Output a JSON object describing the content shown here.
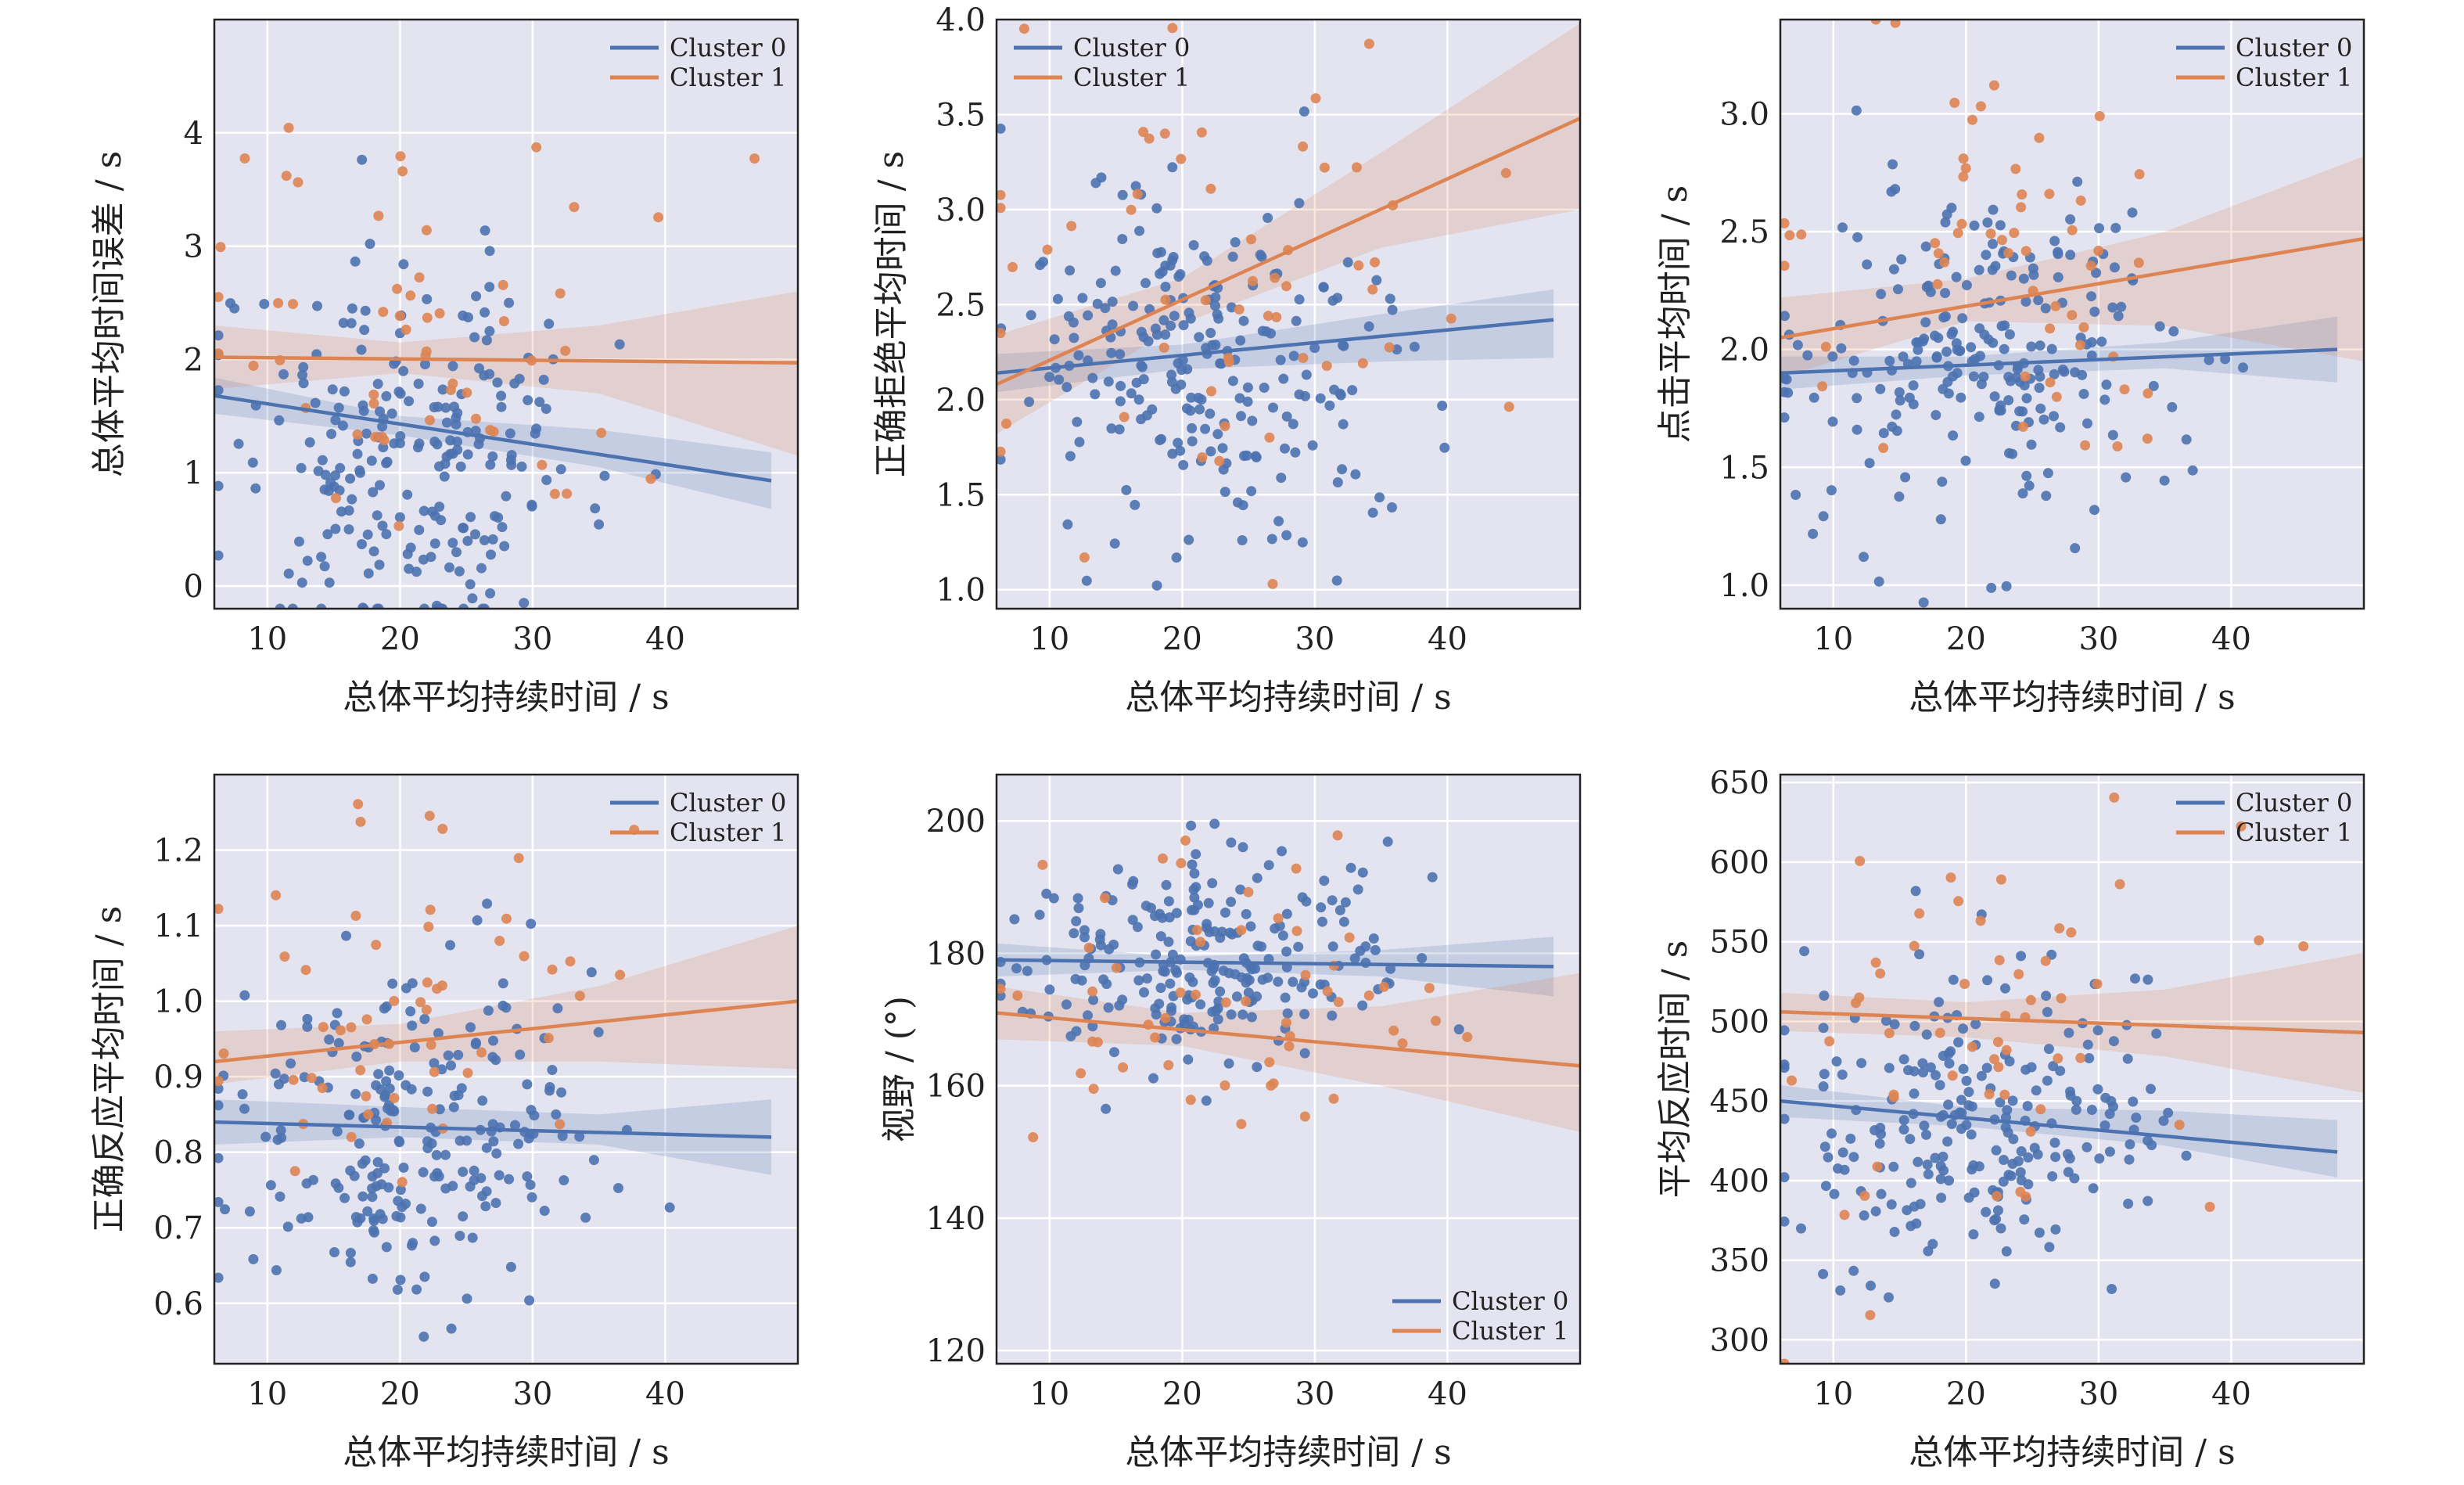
{
  "colors": {
    "panel_bg": "#e4e4f0",
    "grid": "#ffffff",
    "cluster0": "#4c72b0",
    "cluster1": "#dd8452"
  },
  "chart_data": [
    {
      "type": "scatter",
      "panel": 0,
      "xlabel": "总体平均持续时间 / s",
      "ylabel": "总体平均时间误差 / s",
      "xlim": [
        6,
        50
      ],
      "ylim": [
        -0.2,
        5.0
      ],
      "xticks": [
        10,
        20,
        30,
        40
      ],
      "yticks": [
        0,
        1,
        2,
        3,
        4
      ],
      "legend": {
        "position": "top-right",
        "entries": [
          "Cluster 0",
          "Cluster 1"
        ]
      },
      "series": [
        {
          "name": "Cluster 0",
          "fit": {
            "x": [
              6,
              48
            ],
            "y": [
              1.68,
              0.93
            ]
          },
          "band": {
            "x": [
              6,
              20,
              35,
              48
            ],
            "lower": [
              1.52,
              1.33,
              1.05,
              0.68
            ],
            "upper": [
              1.84,
              1.5,
              1.38,
              1.18
            ]
          },
          "n": 230,
          "center": [
            21,
            1.2
          ],
          "spread": [
            7,
            0.85
          ]
        },
        {
          "name": "Cluster 1",
          "fit": {
            "x": [
              6,
              50
            ],
            "y": [
              2.02,
              1.97
            ]
          },
          "band": {
            "x": [
              6,
              20,
              35,
              50
            ],
            "lower": [
              1.74,
              1.88,
              1.7,
              1.15
            ],
            "upper": [
              2.3,
              2.15,
              2.3,
              2.6
            ]
          },
          "n": 55,
          "center": [
            21,
            2.1
          ],
          "spread": [
            9,
            1.0
          ]
        }
      ]
    },
    {
      "type": "scatter",
      "panel": 1,
      "xlabel": "总体平均持续时间 / s",
      "ylabel": "正确拒绝平均时间 / s",
      "xlim": [
        6,
        50
      ],
      "ylim": [
        0.9,
        4.0
      ],
      "xticks": [
        10,
        20,
        30,
        40
      ],
      "yticks": [
        1.0,
        1.5,
        2.0,
        2.5,
        3.0,
        3.5,
        4.0
      ],
      "legend": {
        "position": "top-left",
        "entries": [
          "Cluster 0",
          "Cluster 1"
        ]
      },
      "series": [
        {
          "name": "Cluster 0",
          "fit": {
            "x": [
              6,
              48
            ],
            "y": [
              2.14,
              2.42
            ]
          },
          "band": {
            "x": [
              6,
              20,
              35,
              48
            ],
            "lower": [
              2.04,
              2.16,
              2.2,
              2.22
            ],
            "upper": [
              2.24,
              2.29,
              2.45,
              2.58
            ]
          },
          "n": 230,
          "center": [
            21,
            2.2
          ],
          "spread": [
            7,
            0.45
          ]
        },
        {
          "name": "Cluster 1",
          "fit": {
            "x": [
              6,
              50
            ],
            "y": [
              2.08,
              3.48
            ]
          },
          "band": {
            "x": [
              6,
              20,
              35,
              50
            ],
            "lower": [
              1.82,
              2.4,
              2.8,
              3.0
            ],
            "upper": [
              2.34,
              2.64,
              3.3,
              3.98
            ]
          },
          "n": 55,
          "center": [
            22,
            2.5
          ],
          "spread": [
            9,
            0.65
          ]
        }
      ]
    },
    {
      "type": "scatter",
      "panel": 2,
      "xlabel": "总体平均持续时间 / s",
      "ylabel": "点击平均时间 / s",
      "xlim": [
        6,
        50
      ],
      "ylim": [
        0.9,
        3.4
      ],
      "xticks": [
        10,
        20,
        30,
        40
      ],
      "yticks": [
        1.0,
        1.5,
        2.0,
        2.5,
        3.0
      ],
      "legend": {
        "position": "top-right",
        "entries": [
          "Cluster 0",
          "Cluster 1"
        ]
      },
      "series": [
        {
          "name": "Cluster 0",
          "fit": {
            "x": [
              6,
              48
            ],
            "y": [
              1.9,
              2.0
            ]
          },
          "band": {
            "x": [
              6,
              20,
              35,
              48
            ],
            "lower": [
              1.83,
              1.89,
              1.92,
              1.86
            ],
            "upper": [
              1.97,
              1.97,
              2.03,
              2.14
            ]
          },
          "n": 230,
          "center": [
            21,
            1.95
          ],
          "spread": [
            7,
            0.35
          ]
        },
        {
          "name": "Cluster 1",
          "fit": {
            "x": [
              6,
              50
            ],
            "y": [
              2.05,
              2.47
            ]
          },
          "band": {
            "x": [
              6,
              20,
              35,
              50
            ],
            "lower": [
              1.88,
              2.12,
              2.1,
              1.95
            ],
            "upper": [
              2.22,
              2.3,
              2.5,
              2.82
            ]
          },
          "n": 55,
          "center": [
            22,
            2.3
          ],
          "spread": [
            9,
            0.5
          ]
        }
      ]
    },
    {
      "type": "scatter",
      "panel": 3,
      "xlabel": "总体平均持续时间 / s",
      "ylabel": "正确反应平均时间 / s",
      "xlim": [
        6,
        50
      ],
      "ylim": [
        0.52,
        1.3
      ],
      "xticks": [
        10,
        20,
        30,
        40
      ],
      "yticks": [
        0.6,
        0.7,
        0.8,
        0.9,
        1.0,
        1.1,
        1.2
      ],
      "legend": {
        "position": "top-right",
        "entries": [
          "Cluster 0",
          "Cluster 1"
        ]
      },
      "series": [
        {
          "name": "Cluster 0",
          "fit": {
            "x": [
              6,
              48
            ],
            "y": [
              0.84,
              0.82
            ]
          },
          "band": {
            "x": [
              6,
              20,
              35,
              48
            ],
            "lower": [
              0.81,
              0.82,
              0.81,
              0.77
            ],
            "upper": [
              0.87,
              0.86,
              0.85,
              0.87
            ]
          },
          "n": 230,
          "center": [
            21,
            0.83
          ],
          "spread": [
            7,
            0.11
          ]
        },
        {
          "name": "Cluster 1",
          "fit": {
            "x": [
              6,
              50
            ],
            "y": [
              0.92,
              1.0
            ]
          },
          "band": {
            "x": [
              6,
              20,
              35,
              50
            ],
            "lower": [
              0.89,
              0.92,
              0.92,
              0.91
            ],
            "upper": [
              0.96,
              0.97,
              1.02,
              1.1
            ]
          },
          "n": 55,
          "center": [
            22,
            0.95
          ],
          "spread": [
            9,
            0.13
          ]
        }
      ]
    },
    {
      "type": "scatter",
      "panel": 4,
      "xlabel": "总体平均持续时间 / s",
      "ylabel": "视野 / (°)",
      "xlim": [
        6,
        50
      ],
      "ylim": [
        118,
        207
      ],
      "xticks": [
        10,
        20,
        30,
        40
      ],
      "yticks": [
        120,
        140,
        160,
        180,
        200
      ],
      "legend": {
        "position": "bottom-right",
        "entries": [
          "Cluster 0",
          "Cluster 1"
        ]
      },
      "series": [
        {
          "name": "Cluster 0",
          "fit": {
            "x": [
              6,
              48
            ],
            "y": [
              179,
              178
            ]
          },
          "band": {
            "x": [
              6,
              20,
              35,
              48
            ],
            "lower": [
              176.5,
              177.5,
              176.5,
              173.5
            ],
            "upper": [
              181.5,
              179.5,
              180.5,
              182.5
            ]
          },
          "n": 230,
          "center": [
            21,
            179
          ],
          "spread": [
            7,
            8
          ]
        },
        {
          "name": "Cluster 1",
          "fit": {
            "x": [
              6,
              50
            ],
            "y": [
              171,
              163
            ]
          },
          "band": {
            "x": [
              6,
              20,
              35,
              50
            ],
            "lower": [
              167,
              166,
              160,
              153
            ],
            "upper": [
              175,
              171,
              172,
              177
            ]
          },
          "n": 55,
          "center": [
            22,
            170
          ],
          "spread": [
            9,
            12
          ]
        }
      ]
    },
    {
      "type": "scatter",
      "panel": 5,
      "xlabel": "总体平均持续时间 / s",
      "ylabel": "平均反应时间 / s",
      "xlim": [
        6,
        50
      ],
      "ylim": [
        285,
        655
      ],
      "xticks": [
        10,
        20,
        30,
        40
      ],
      "yticks": [
        300,
        350,
        400,
        450,
        500,
        550,
        600,
        650
      ],
      "legend": {
        "position": "top-right",
        "entries": [
          "Cluster 0",
          "Cluster 1"
        ]
      },
      "series": [
        {
          "name": "Cluster 0",
          "fit": {
            "x": [
              6,
              48
            ],
            "y": [
              450,
              418
            ]
          },
          "band": {
            "x": [
              6,
              20,
              35,
              48
            ],
            "lower": [
              440,
              434,
              422,
              402
            ],
            "upper": [
              460,
              446,
              444,
              438
            ]
          },
          "n": 230,
          "center": [
            21,
            435
          ],
          "spread": [
            7,
            50
          ]
        },
        {
          "name": "Cluster 1",
          "fit": {
            "x": [
              6,
              50
            ],
            "y": [
              506,
              493
            ]
          },
          "band": {
            "x": [
              6,
              20,
              35,
              50
            ],
            "lower": [
              494,
              490,
              478,
              455
            ],
            "upper": [
              518,
              512,
              520,
              543
            ]
          },
          "n": 55,
          "center": [
            22,
            500
          ],
          "spread": [
            9,
            65
          ]
        }
      ]
    }
  ]
}
